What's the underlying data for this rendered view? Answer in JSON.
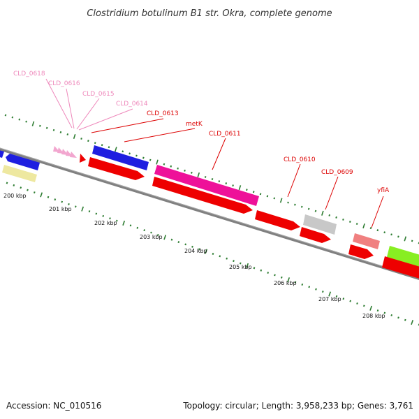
{
  "header": {
    "title": "Clostridium botulinum B1 str. Okra, complete genome"
  },
  "footer": {
    "accession": "Accession: NC_010516",
    "summary": "Topology: circular; Length: 3,958,233 bp; Genes: 3,761"
  },
  "axis": {
    "tick_labels": [
      "200 kbp",
      "201 kbp",
      "202 kbp",
      "203 kbp",
      "204 kbp",
      "205 kbp",
      "206 kbp",
      "207 kbp",
      "208 kbp"
    ]
  },
  "colors": {
    "backbone": "#808080",
    "tick": "#2e7d32",
    "cds": "#ee0000",
    "blue_feature": "#1f1fe0",
    "magenta_feature": "#ee1199",
    "grey_feature": "#c8c8c8",
    "pink_feature": "#f08080",
    "green_feature": "#88ee22",
    "khaki_feature": "#eee8a0",
    "pink_arrows": "#f2a6cf",
    "label_red": "#dd0000",
    "label_pink": "#ee88bb"
  },
  "genes": [
    {
      "name": "CLD_0618",
      "color": "label_pink"
    },
    {
      "name": "CLD_0616",
      "color": "label_pink"
    },
    {
      "name": "CLD_0615",
      "color": "label_pink"
    },
    {
      "name": "CLD_0614",
      "color": "label_pink"
    },
    {
      "name": "CLD_0613",
      "color": "label_red"
    },
    {
      "name": "metK",
      "color": "label_red"
    },
    {
      "name": "CLD_0611",
      "color": "label_red"
    },
    {
      "name": "CLD_0610",
      "color": "label_red"
    },
    {
      "name": "CLD_0609",
      "color": "label_red"
    },
    {
      "name": "yfiA",
      "color": "label_red"
    }
  ]
}
